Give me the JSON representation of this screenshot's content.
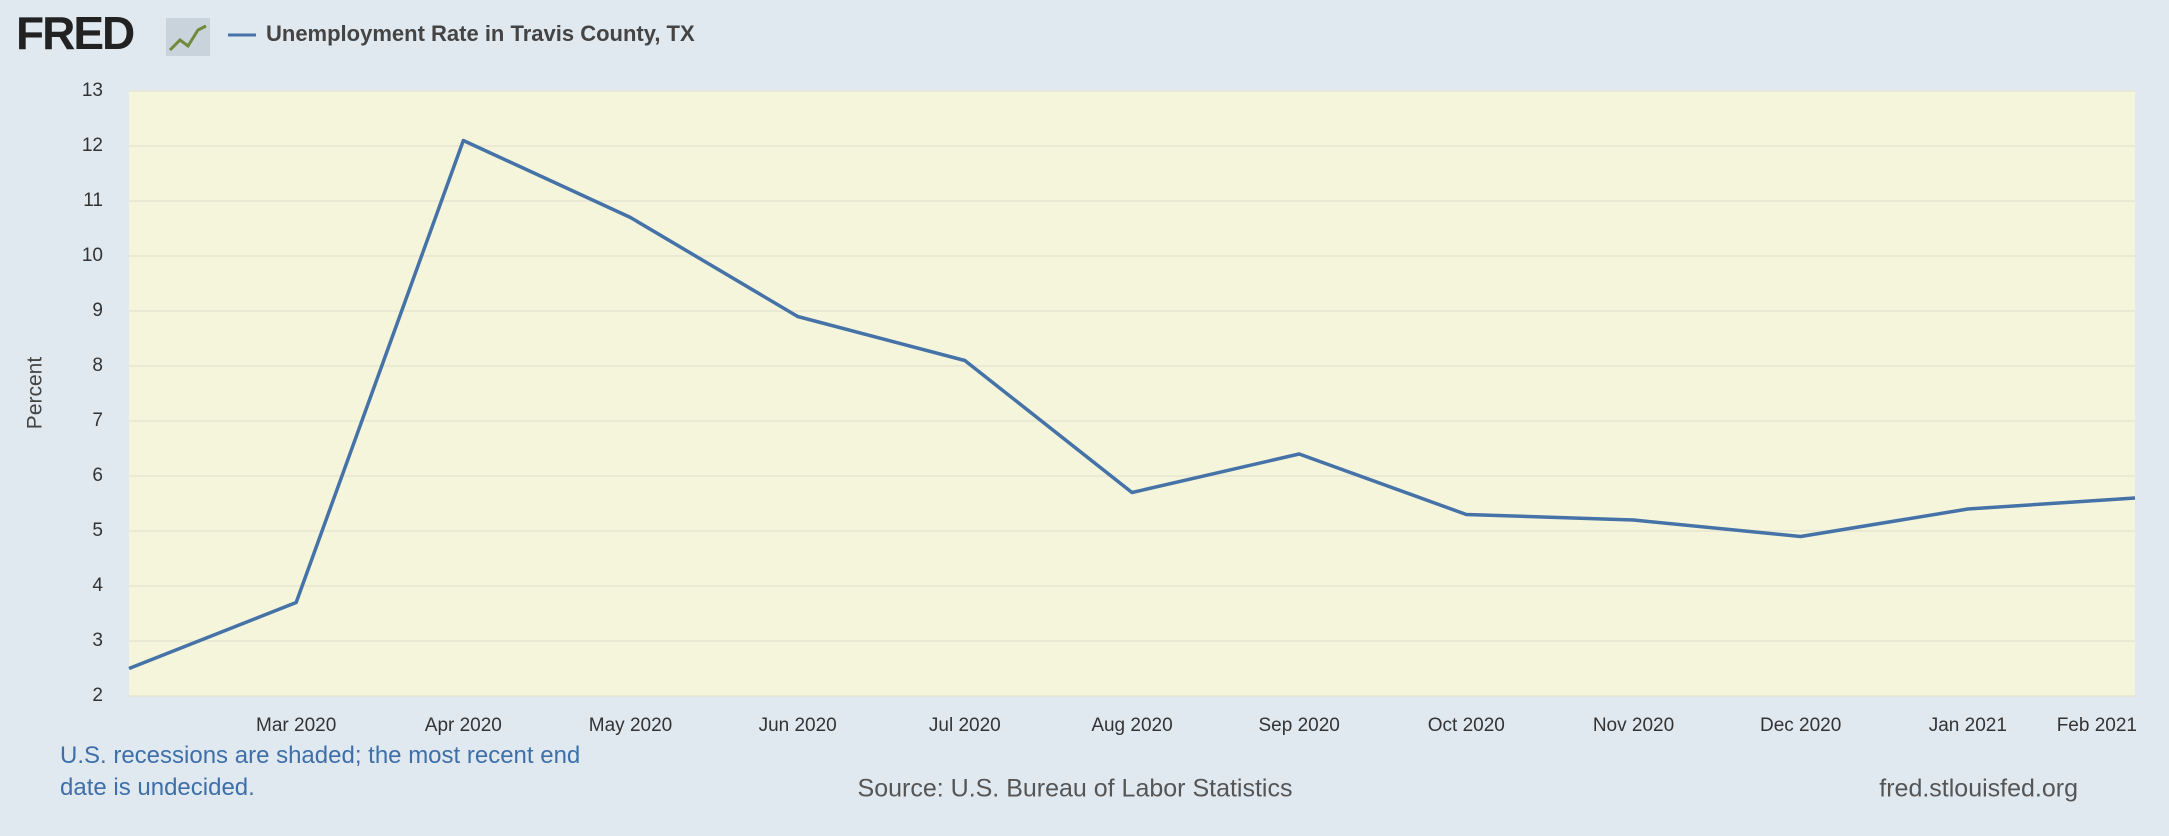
{
  "logo": "FRED",
  "chart_data": {
    "type": "line",
    "ylabel": "Percent",
    "categories": [
      null,
      "Mar 2020",
      "Apr 2020",
      "May 2020",
      "Jun 2020",
      "Jul 2020",
      "Aug 2020",
      "Sep 2020",
      "Oct 2020",
      "Nov 2020",
      "Dec 2020",
      "Jan 2021",
      "Feb 2021"
    ],
    "series": [
      {
        "name": "Unemployment Rate in Travis County, TX",
        "color": "#4572a7",
        "values": [
          2.5,
          3.7,
          12.1,
          10.7,
          8.9,
          8.1,
          5.7,
          6.4,
          5.3,
          5.2,
          4.9,
          5.4,
          5.6
        ]
      }
    ],
    "ylim": [
      2,
      13
    ],
    "yticks": [
      2,
      3,
      4,
      5,
      6,
      7,
      8,
      9,
      10,
      11,
      12,
      13
    ],
    "grid": true
  },
  "footer": {
    "note": "U.S. recessions are shaded; the most recent end date is undecided.",
    "source": "Source: U.S. Bureau of Labor Statistics",
    "site": "fred.stlouisfed.org"
  }
}
